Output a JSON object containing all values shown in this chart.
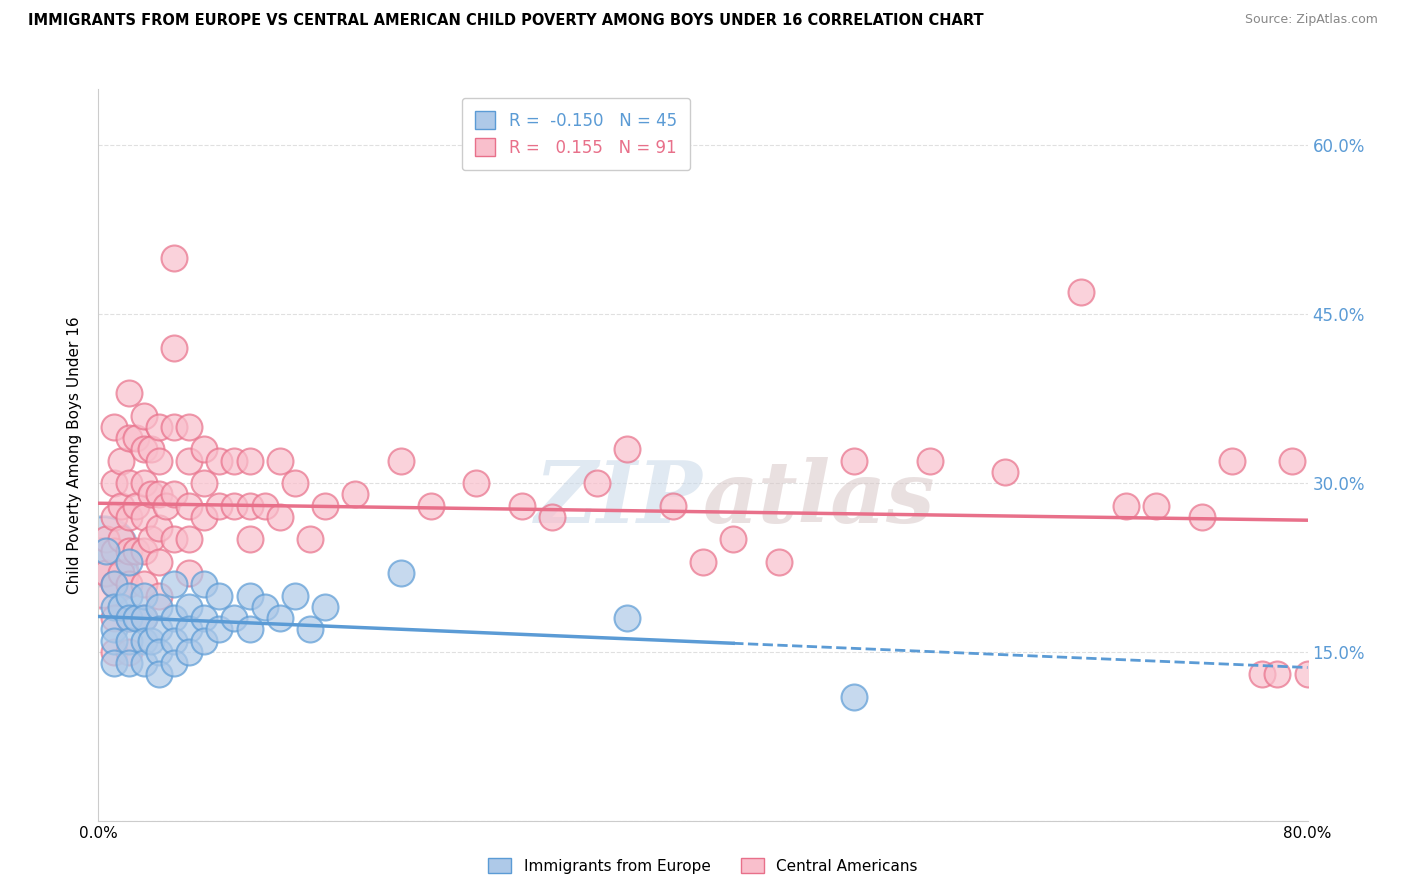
{
  "title": "IMMIGRANTS FROM EUROPE VS CENTRAL AMERICAN CHILD POVERTY AMONG BOYS UNDER 16 CORRELATION CHART",
  "source": "Source: ZipAtlas.com",
  "ylabel": "Child Poverty Among Boys Under 16",
  "xlim": [
    0.0,
    0.8
  ],
  "ylim": [
    0.0,
    0.65
  ],
  "yticks": [
    0.0,
    0.15,
    0.3,
    0.45,
    0.6
  ],
  "ytick_labels": [
    "",
    "15.0%",
    "30.0%",
    "45.0%",
    "60.0%"
  ],
  "xtick_vals": [
    0.0,
    0.8
  ],
  "xtick_labels": [
    "0.0%",
    "80.0%"
  ],
  "europe_R": -0.15,
  "europe_N": 45,
  "central_R": 0.155,
  "central_N": 91,
  "europe_fill": "#aec9e8",
  "europe_edge": "#5b9bd5",
  "central_fill": "#f9bfcc",
  "central_edge": "#e8708a",
  "background": "#ffffff",
  "grid_color": "#e0e0e0",
  "europe_scatter_x": [
    0.005,
    0.01,
    0.01,
    0.01,
    0.01,
    0.01,
    0.015,
    0.02,
    0.02,
    0.02,
    0.02,
    0.02,
    0.025,
    0.03,
    0.03,
    0.03,
    0.03,
    0.035,
    0.04,
    0.04,
    0.04,
    0.04,
    0.05,
    0.05,
    0.05,
    0.05,
    0.06,
    0.06,
    0.06,
    0.07,
    0.07,
    0.07,
    0.08,
    0.08,
    0.09,
    0.1,
    0.1,
    0.11,
    0.12,
    0.13,
    0.14,
    0.15,
    0.2,
    0.35,
    0.5
  ],
  "europe_scatter_y": [
    0.24,
    0.21,
    0.19,
    0.17,
    0.16,
    0.14,
    0.19,
    0.23,
    0.2,
    0.18,
    0.16,
    0.14,
    0.18,
    0.2,
    0.18,
    0.16,
    0.14,
    0.16,
    0.19,
    0.17,
    0.15,
    0.13,
    0.21,
    0.18,
    0.16,
    0.14,
    0.19,
    0.17,
    0.15,
    0.21,
    0.18,
    0.16,
    0.2,
    0.17,
    0.18,
    0.2,
    0.17,
    0.19,
    0.18,
    0.2,
    0.17,
    0.19,
    0.22,
    0.18,
    0.11
  ],
  "central_scatter_x": [
    0.005,
    0.005,
    0.01,
    0.01,
    0.01,
    0.01,
    0.01,
    0.01,
    0.01,
    0.015,
    0.015,
    0.015,
    0.015,
    0.02,
    0.02,
    0.02,
    0.02,
    0.02,
    0.02,
    0.02,
    0.02,
    0.025,
    0.025,
    0.025,
    0.03,
    0.03,
    0.03,
    0.03,
    0.03,
    0.03,
    0.03,
    0.035,
    0.035,
    0.035,
    0.04,
    0.04,
    0.04,
    0.04,
    0.04,
    0.04,
    0.045,
    0.05,
    0.05,
    0.05,
    0.05,
    0.05,
    0.06,
    0.06,
    0.06,
    0.06,
    0.06,
    0.07,
    0.07,
    0.07,
    0.08,
    0.08,
    0.09,
    0.09,
    0.1,
    0.1,
    0.1,
    0.11,
    0.12,
    0.12,
    0.13,
    0.14,
    0.15,
    0.17,
    0.2,
    0.22,
    0.25,
    0.28,
    0.3,
    0.33,
    0.35,
    0.38,
    0.4,
    0.42,
    0.45,
    0.5,
    0.55,
    0.6,
    0.65,
    0.68,
    0.7,
    0.73,
    0.75,
    0.77,
    0.78,
    0.79,
    0.8
  ],
  "central_scatter_y": [
    0.25,
    0.22,
    0.35,
    0.3,
    0.27,
    0.24,
    0.21,
    0.18,
    0.15,
    0.32,
    0.28,
    0.25,
    0.22,
    0.38,
    0.34,
    0.3,
    0.27,
    0.24,
    0.21,
    0.18,
    0.15,
    0.34,
    0.28,
    0.24,
    0.36,
    0.33,
    0.3,
    0.27,
    0.24,
    0.21,
    0.18,
    0.33,
    0.29,
    0.25,
    0.35,
    0.32,
    0.29,
    0.26,
    0.23,
    0.2,
    0.28,
    0.5,
    0.42,
    0.35,
    0.29,
    0.25,
    0.35,
    0.32,
    0.28,
    0.25,
    0.22,
    0.33,
    0.3,
    0.27,
    0.32,
    0.28,
    0.32,
    0.28,
    0.32,
    0.28,
    0.25,
    0.28,
    0.32,
    0.27,
    0.3,
    0.25,
    0.28,
    0.29,
    0.32,
    0.28,
    0.3,
    0.28,
    0.27,
    0.3,
    0.33,
    0.28,
    0.23,
    0.25,
    0.23,
    0.32,
    0.32,
    0.31,
    0.47,
    0.28,
    0.28,
    0.27,
    0.32,
    0.13,
    0.13,
    0.32,
    0.13
  ]
}
